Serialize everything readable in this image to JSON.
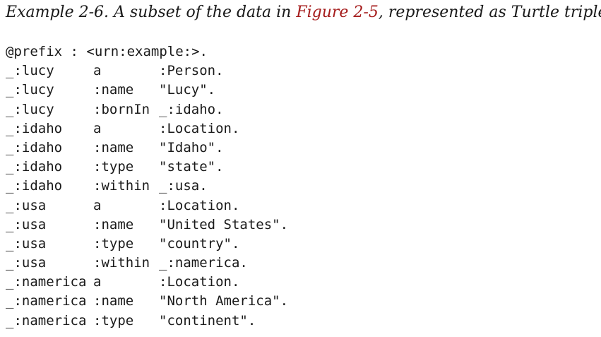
{
  "caption": {
    "prefix": "Example 2-6. A subset of the data in ",
    "link_text": "Figure 2-5",
    "suffix": ", represented as Turtle triples"
  },
  "code": {
    "prefix_line": "@prefix : <urn:example:>.",
    "triples": [
      {
        "subject": "_:lucy",
        "predicate": "a",
        "object": ":Person."
      },
      {
        "subject": "_:lucy",
        "predicate": ":name",
        "object": "\"Lucy\"."
      },
      {
        "subject": "_:lucy",
        "predicate": ":bornIn",
        "object": "_:idaho."
      },
      {
        "subject": "_:idaho",
        "predicate": "a",
        "object": ":Location."
      },
      {
        "subject": "_:idaho",
        "predicate": ":name",
        "object": "\"Idaho\"."
      },
      {
        "subject": "_:idaho",
        "predicate": ":type",
        "object": "\"state\"."
      },
      {
        "subject": "_:idaho",
        "predicate": ":within",
        "object": "_:usa."
      },
      {
        "subject": "_:usa",
        "predicate": "a",
        "object": ":Location."
      },
      {
        "subject": "_:usa",
        "predicate": ":name",
        "object": "\"United States\"."
      },
      {
        "subject": "_:usa",
        "predicate": ":type",
        "object": "\"country\"."
      },
      {
        "subject": "_:usa",
        "predicate": ":within",
        "object": "_:namerica."
      },
      {
        "subject": "_:namerica",
        "predicate": "a",
        "object": ":Location."
      },
      {
        "subject": "_:namerica",
        "predicate": ":name",
        "object": "\"North America\"."
      },
      {
        "subject": "_:namerica",
        "predicate": ":type",
        "object": "\"continent\"."
      }
    ]
  }
}
